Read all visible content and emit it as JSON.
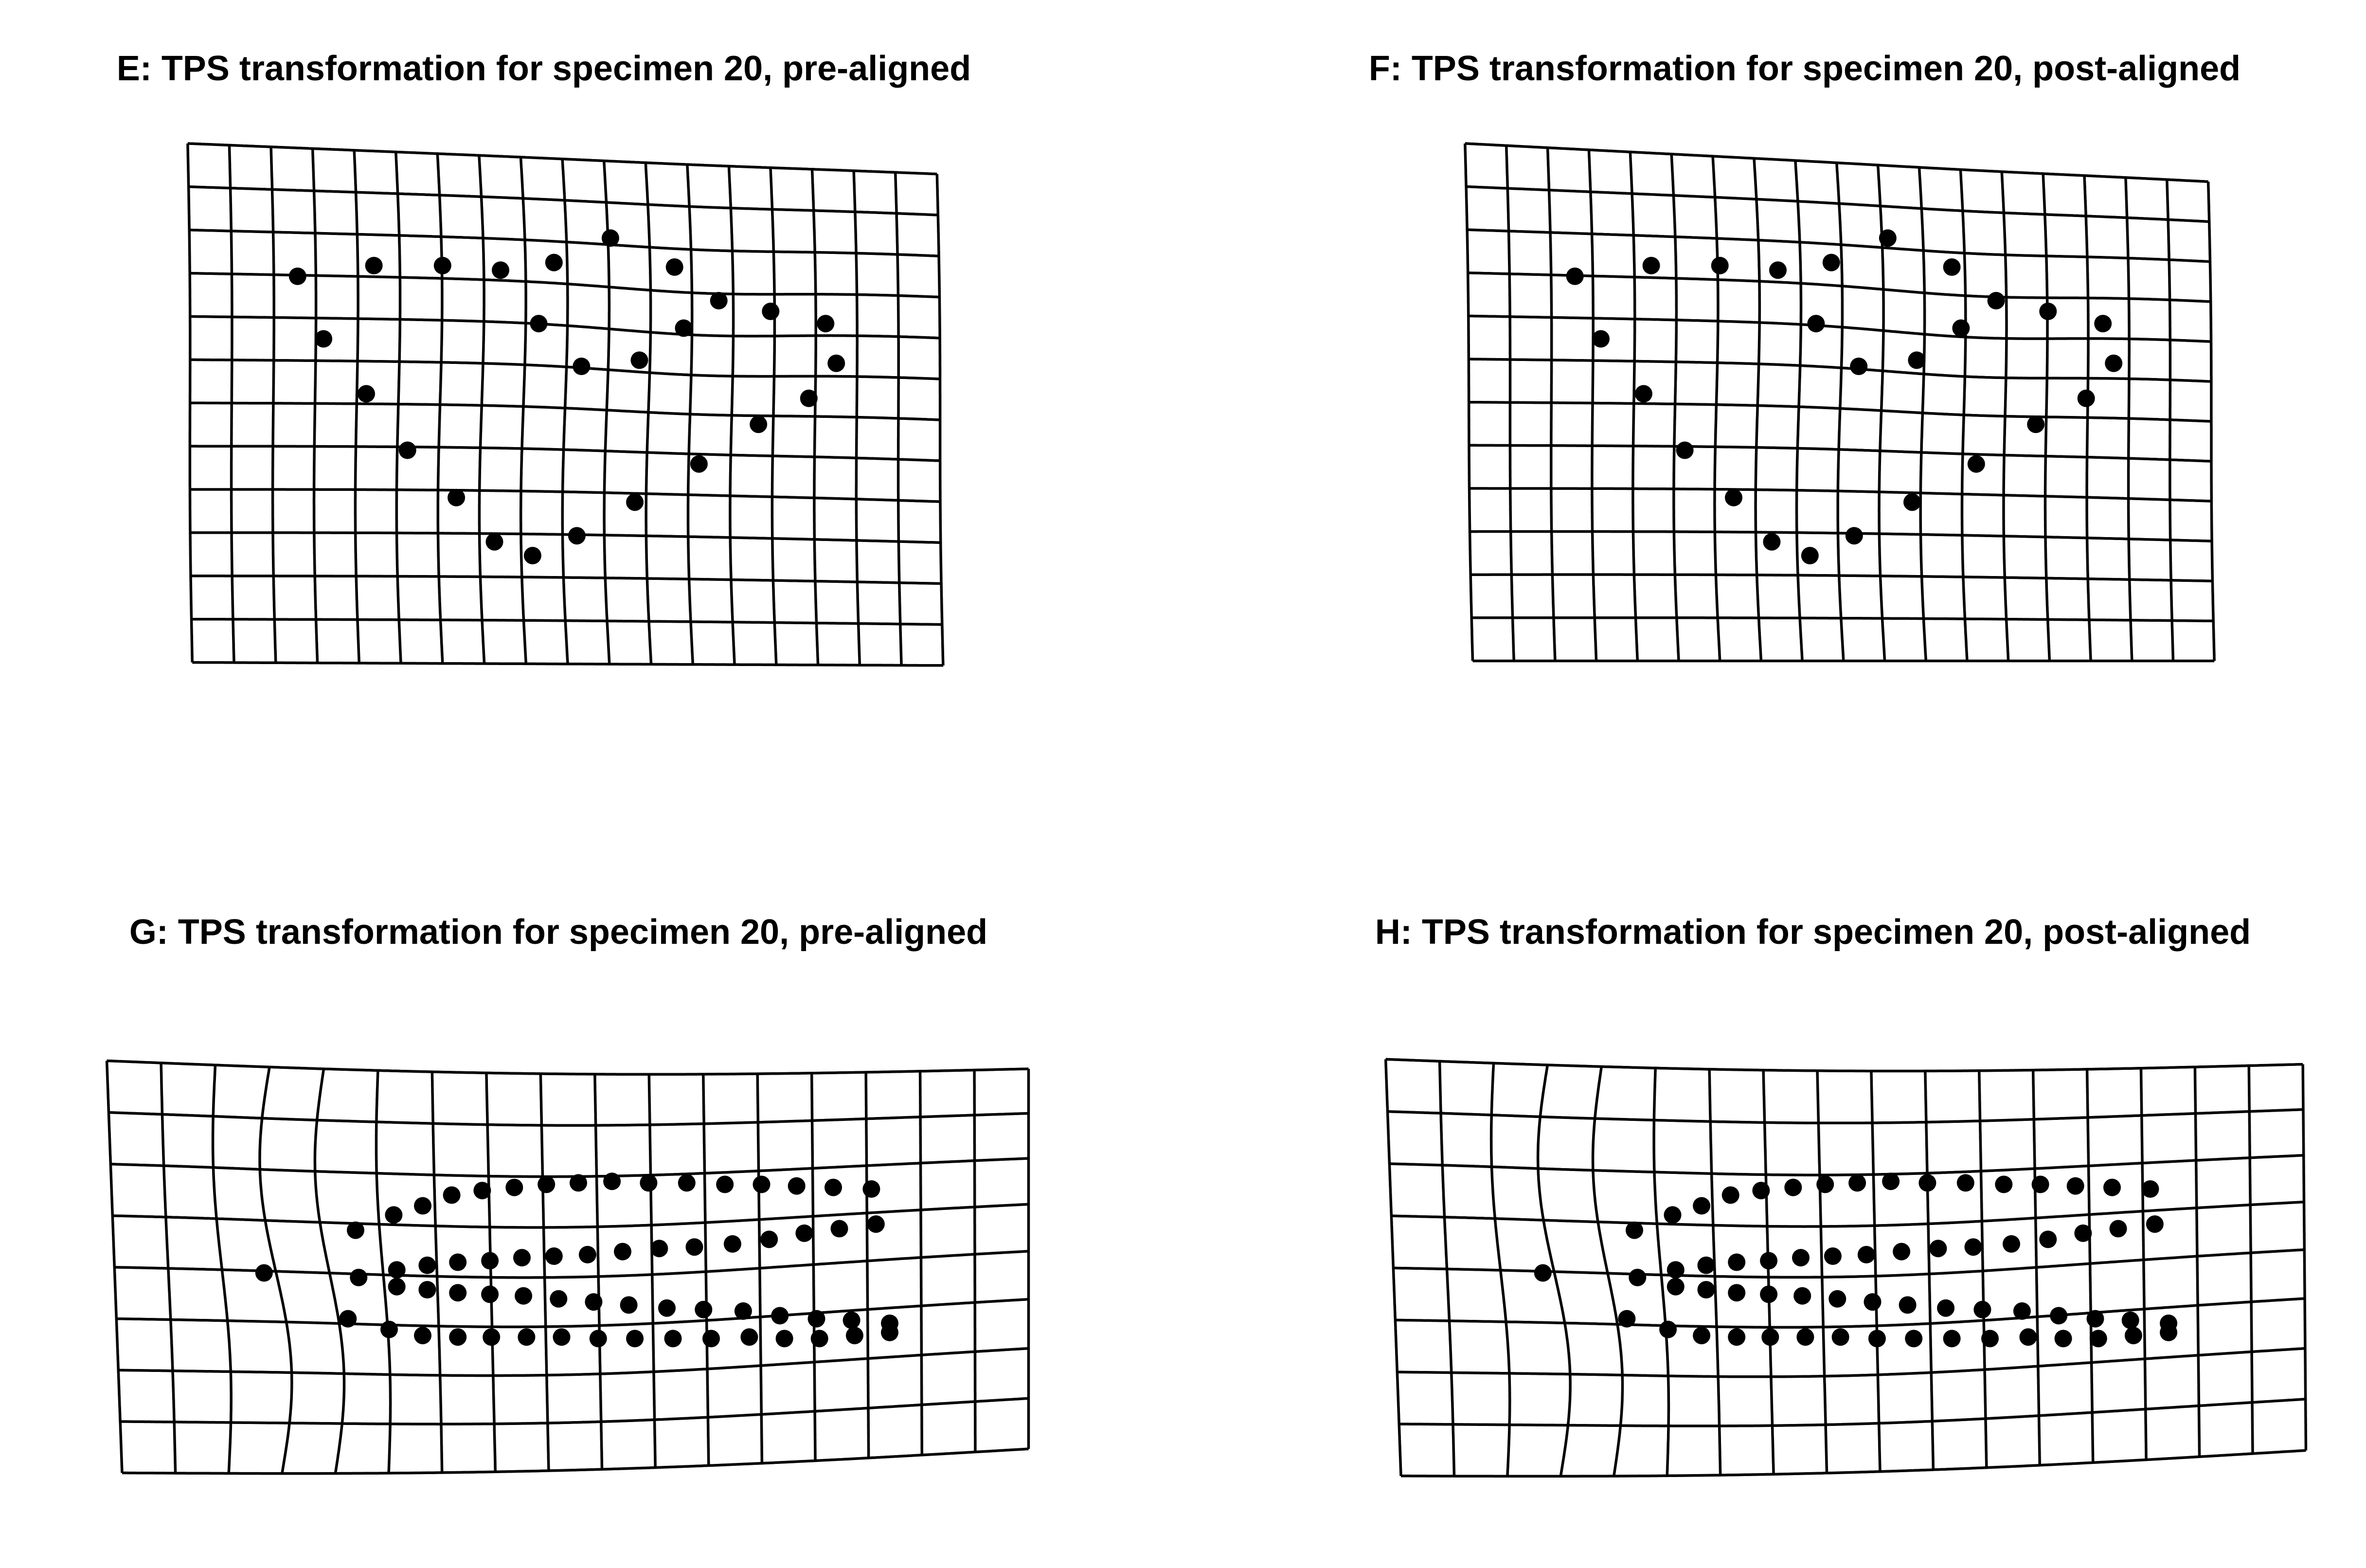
{
  "panels": [
    {
      "id": "E",
      "title": "E: TPS transformation for specimen 20, pre-aligned",
      "landmark_count": 29
    },
    {
      "id": "F",
      "title": "F: TPS transformation for specimen 20, post-aligned",
      "landmark_count": 29
    },
    {
      "id": "G",
      "title": "G: TPS transformation for specimen 20, pre-aligned",
      "landmark_count": 70
    },
    {
      "id": "H",
      "title": "H: TPS transformation for specimen 20, post-aligned",
      "landmark_count": 70
    }
  ],
  "colors": {
    "grid": "#000000",
    "landmarks": "#000000",
    "background": "#ffffff"
  }
}
